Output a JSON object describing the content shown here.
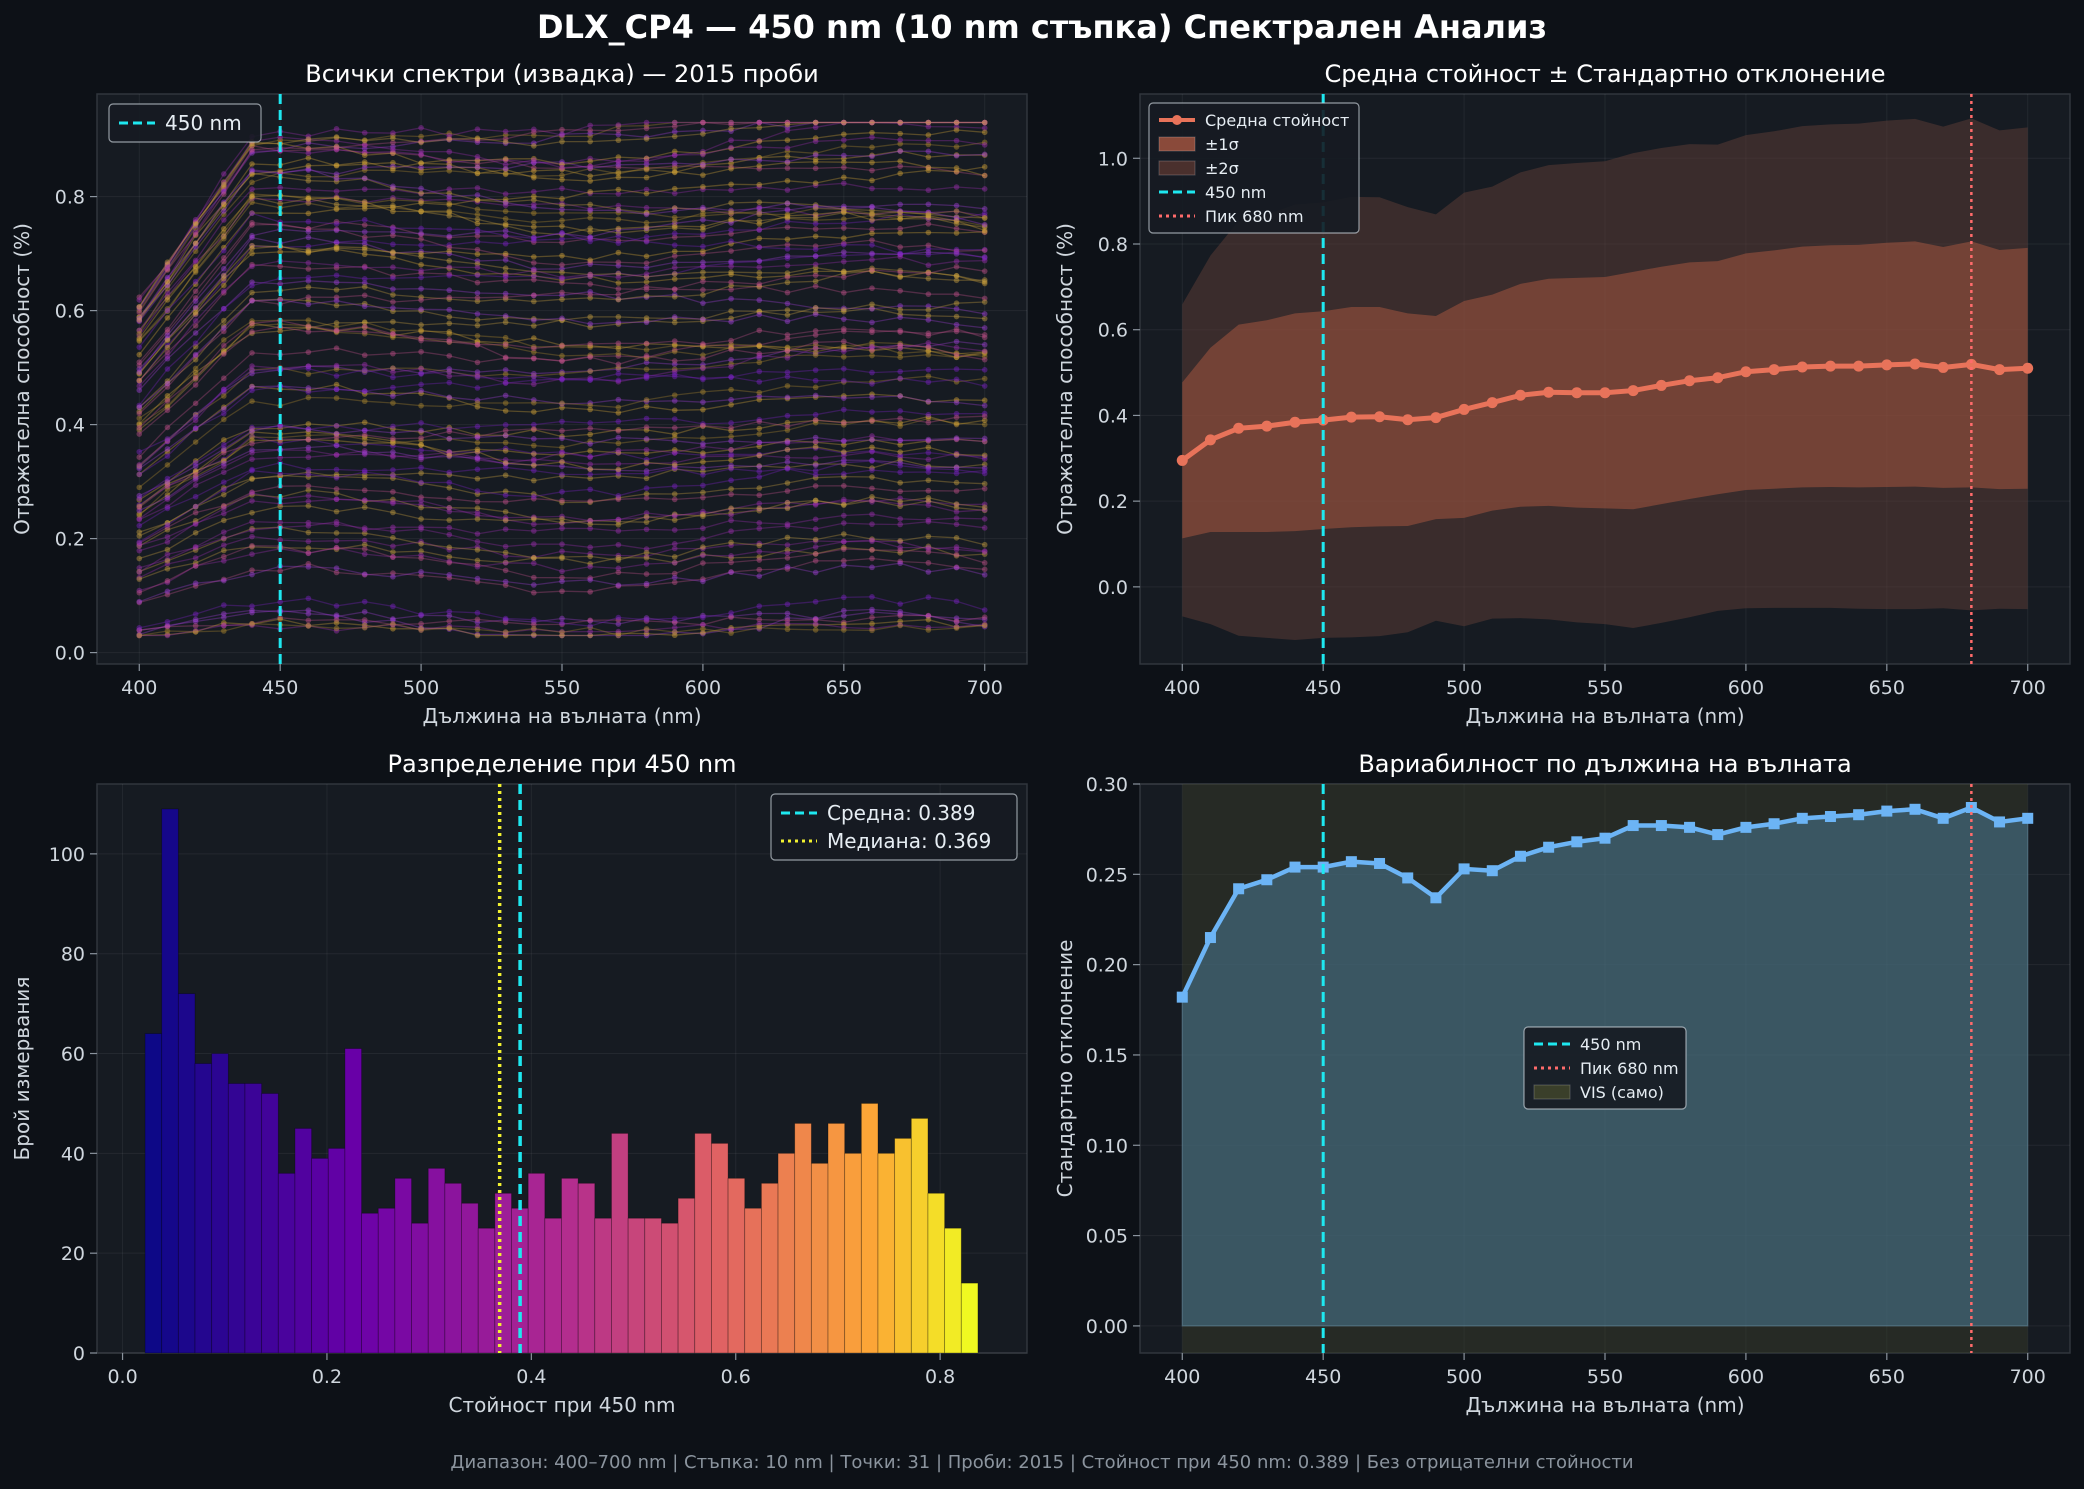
{
  "figure": {
    "title": "DLX_CP4 — 450 nm (10 nm стъпка) Спектрален Анализ",
    "footer": "Диапазон: 400–700 nm  |  Стъпка: 10 nm  |  Точки: 31  |  Проби: 2015  |  Стойност при 450 nm: 0.389  |  Без отрицателни стойности"
  },
  "colors": {
    "background": "#0d1117",
    "panel": "#161b22",
    "text": "#e6edf3",
    "cyan": "#1ee8f0",
    "mean_line": "#e8735a",
    "peak": "#ff6b6b",
    "sd_line": "#6cb4f5",
    "yellow": "#f2f230"
  },
  "chart_data": [
    {
      "id": "spectra",
      "type": "line",
      "title": "Всички спектри (извадка) — 2015 проби",
      "xlabel": "Дължина на вълната (nm)",
      "ylabel": "Отражателна способност (%)",
      "xlim": [
        385,
        715
      ],
      "ylim": [
        -0.02,
        0.98
      ],
      "xticks": [
        400,
        450,
        500,
        550,
        600,
        650,
        700
      ],
      "yticks": [
        0.0,
        0.2,
        0.4,
        0.6,
        0.8
      ],
      "x": [
        400,
        410,
        420,
        430,
        440,
        450,
        460,
        470,
        480,
        490,
        500,
        510,
        520,
        530,
        540,
        550,
        560,
        570,
        580,
        590,
        600,
        610,
        620,
        630,
        640,
        650,
        660,
        670,
        680,
        690,
        700
      ],
      "legend": [
        {
          "label": "450 nm",
          "style": "dashed",
          "color": "#1ee8f0"
        }
      ],
      "legend_position": "upper-left",
      "vline": {
        "x": 450,
        "label": "450 nm"
      },
      "series_count": 90,
      "grid": true
    },
    {
      "id": "meanstd",
      "type": "line",
      "title": "Средна стойност ± Стандартно отклонение",
      "xlabel": "Дължина на вълната (nm)",
      "ylabel": "Отражателна способност (%)",
      "xlim": [
        385,
        715
      ],
      "ylim": [
        -0.18,
        1.15
      ],
      "xticks": [
        400,
        450,
        500,
        550,
        600,
        650,
        700
      ],
      "yticks": [
        0.0,
        0.2,
        0.4,
        0.6,
        0.8,
        1.0
      ],
      "x": [
        400,
        410,
        420,
        430,
        440,
        450,
        460,
        470,
        480,
        490,
        500,
        510,
        520,
        530,
        540,
        550,
        560,
        570,
        580,
        590,
        600,
        610,
        620,
        630,
        640,
        650,
        660,
        670,
        680,
        690,
        700
      ],
      "mean": [
        0.295,
        0.343,
        0.37,
        0.375,
        0.384,
        0.389,
        0.396,
        0.397,
        0.39,
        0.395,
        0.414,
        0.43,
        0.447,
        0.454,
        0.453,
        0.453,
        0.458,
        0.47,
        0.481,
        0.488,
        0.502,
        0.507,
        0.513,
        0.515,
        0.515,
        0.518,
        0.52,
        0.512,
        0.519,
        0.507,
        0.51
      ],
      "std": [
        0.182,
        0.215,
        0.242,
        0.247,
        0.254,
        0.254,
        0.257,
        0.256,
        0.248,
        0.237,
        0.253,
        0.252,
        0.26,
        0.265,
        0.268,
        0.27,
        0.277,
        0.277,
        0.276,
        0.272,
        0.276,
        0.278,
        0.281,
        0.282,
        0.283,
        0.285,
        0.286,
        0.281,
        0.287,
        0.279,
        0.281
      ],
      "legend": [
        {
          "label": "Средна стойност",
          "style": "line-marker",
          "color": "#e8735a"
        },
        {
          "label": "±1σ",
          "style": "fill",
          "color": "#8a4a3a"
        },
        {
          "label": "±2σ",
          "style": "fill",
          "color": "#4a302d"
        },
        {
          "label": "450 nm",
          "style": "dashed",
          "color": "#1ee8f0"
        },
        {
          "label": "Пик 680 nm",
          "style": "dotted",
          "color": "#ff6b6b"
        }
      ],
      "legend_position": "upper-left",
      "vlines": [
        {
          "x": 450
        },
        {
          "x": 680
        }
      ],
      "grid": true
    },
    {
      "id": "hist",
      "type": "bar",
      "title": "Разпределение при 450 nm",
      "xlabel": "Стойност при 450 nm",
      "ylabel": "Брой измервания",
      "xlim": [
        -0.025,
        0.885
      ],
      "ylim": [
        0,
        114
      ],
      "xticks": [
        0.0,
        0.2,
        0.4,
        0.6,
        0.8
      ],
      "yticks": [
        0,
        20,
        40,
        60,
        80,
        100
      ],
      "bin_start": 0.022,
      "bin_width": 0.0163,
      "counts": [
        64,
        109,
        72,
        58,
        60,
        54,
        54,
        52,
        36,
        45,
        39,
        41,
        61,
        28,
        29,
        35,
        26,
        37,
        34,
        30,
        25,
        32,
        29,
        36,
        27,
        35,
        34,
        27,
        44,
        27,
        27,
        26,
        31,
        44,
        42,
        35,
        29,
        34,
        40,
        46,
        38,
        46,
        40,
        50,
        40,
        43,
        47,
        32,
        25,
        14
      ],
      "mean": 0.389,
      "median": 0.369,
      "legend": [
        {
          "label": "Средна: 0.389",
          "style": "dashed",
          "color": "#1ee8f0"
        },
        {
          "label": "Медиана: 0.369",
          "style": "dotted",
          "color": "#f2f230"
        }
      ],
      "legend_position": "upper-right",
      "grid": true
    },
    {
      "id": "variability",
      "type": "area",
      "title": "Вариабилност по дължина на вълната",
      "xlabel": "Дължина на вълната (nm)",
      "ylabel": "Стандартно отклонение",
      "xlim": [
        385,
        715
      ],
      "ylim": [
        -0.015,
        0.3
      ],
      "xticks": [
        400,
        450,
        500,
        550,
        600,
        650,
        700
      ],
      "yticks": [
        0.0,
        0.05,
        0.1,
        0.15,
        0.2,
        0.25,
        0.3
      ],
      "ytick_labels": [
        "0.00",
        "0.05",
        "0.10",
        "0.15",
        "0.20",
        "0.25",
        "0.30"
      ],
      "x": [
        400,
        410,
        420,
        430,
        440,
        450,
        460,
        470,
        480,
        490,
        500,
        510,
        520,
        530,
        540,
        550,
        560,
        570,
        580,
        590,
        600,
        610,
        620,
        630,
        640,
        650,
        660,
        670,
        680,
        690,
        700
      ],
      "std": [
        0.182,
        0.215,
        0.242,
        0.247,
        0.254,
        0.254,
        0.257,
        0.256,
        0.248,
        0.237,
        0.253,
        0.252,
        0.26,
        0.265,
        0.268,
        0.27,
        0.277,
        0.277,
        0.276,
        0.272,
        0.276,
        0.278,
        0.281,
        0.282,
        0.283,
        0.285,
        0.286,
        0.281,
        0.287,
        0.279,
        0.281
      ],
      "legend": [
        {
          "label": "450 nm",
          "style": "dashed",
          "color": "#1ee8f0"
        },
        {
          "label": "Пик 680 nm",
          "style": "dotted",
          "color": "#ff6b6b"
        },
        {
          "label": "VIS (само)",
          "style": "fill",
          "color": "#3a3f2a"
        }
      ],
      "legend_position": "center",
      "vis_band": [
        400,
        700
      ],
      "vlines": [
        {
          "x": 450
        },
        {
          "x": 680
        }
      ],
      "grid": true
    }
  ]
}
